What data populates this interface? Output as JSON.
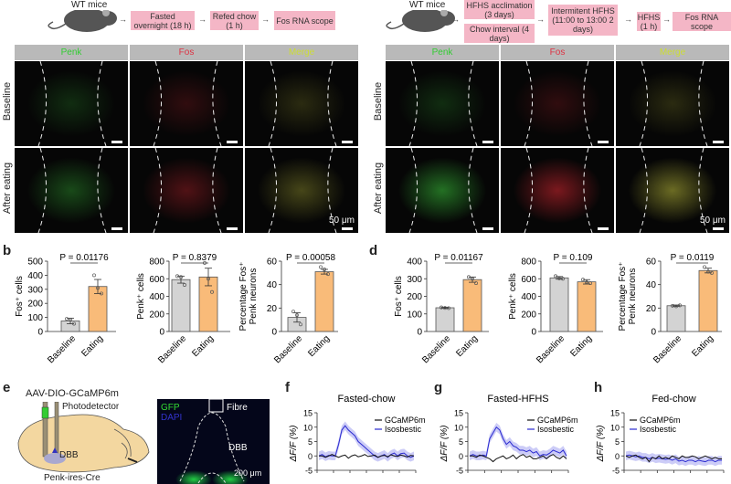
{
  "panel_a": {
    "mouse_label": "WT mice",
    "steps": [
      "Fasted overnight (18 h)",
      "Refed chow (1 h)",
      "Fos RNA scope"
    ],
    "columns": [
      "Penk",
      "Fos",
      "Merge"
    ],
    "rows": [
      "Baseline",
      "After eating"
    ],
    "scale_bar": "50 μm"
  },
  "panel_c": {
    "mouse_label": "WT mice",
    "steps_stacked": [
      "HFHS acclimation (3 days)",
      "Chow interval (4 days)"
    ],
    "steps": [
      "Intermitent HFHS (11:00 to 13:00 2 days)",
      "HFHS (1 h)",
      "Fos RNA scope"
    ],
    "columns": [
      "Penk",
      "Fos",
      "Merge"
    ],
    "rows": [
      "Baseline",
      "After eating"
    ],
    "scale_bar": "50 μm"
  },
  "labels": {
    "b": "b",
    "d": "d",
    "e": "e",
    "f": "f",
    "g": "g",
    "h": "h"
  },
  "panel_e": {
    "virus": "AAV-DIO-GCaMP6m",
    "photodetector": "Photodetector",
    "region": "DBB",
    "mouse_line": "Penk-ires-Cre",
    "image_labels": {
      "gfp": "GFP",
      "dapi": "DAPI",
      "fibre": "Fibre",
      "dbb": "DBB",
      "scale": "200 μm"
    }
  },
  "colors": {
    "baseline": "#d3d3d3",
    "eating": "#f9bb79",
    "gcamp": "#111111",
    "isosbestic": "#2a2ad0",
    "box": "#f4b6c6"
  },
  "chart_data": [
    {
      "id": "b1",
      "type": "bar",
      "categories": [
        "Baseline",
        "Eating"
      ],
      "values": [
        75,
        320
      ],
      "errors": [
        20,
        50
      ],
      "points": [
        [
          90,
          85,
          55
        ],
        [
          400,
          310,
          270
        ]
      ],
      "ylabel": [
        "Fos⁺ cells"
      ],
      "ylim": [
        0,
        500
      ],
      "ticks": [
        0,
        100,
        200,
        300,
        400,
        500
      ],
      "pvalue": "P = 0.01176"
    },
    {
      "id": "b2",
      "type": "bar",
      "categories": [
        "Baseline",
        "Eating"
      ],
      "values": [
        590,
        620
      ],
      "errors": [
        40,
        100
      ],
      "points": [
        [
          630,
          620,
          530
        ],
        [
          780,
          600,
          450
        ]
      ],
      "ylabel": [
        "Penk⁺ cells"
      ],
      "ylim": [
        0,
        800
      ],
      "ticks": [
        0,
        200,
        400,
        600,
        800
      ],
      "pvalue": "P = 0.8379"
    },
    {
      "id": "b3",
      "type": "bar",
      "categories": [
        "Baseline",
        "Eating"
      ],
      "values": [
        12,
        51
      ],
      "errors": [
        4,
        2
      ],
      "points": [
        [
          17,
          14,
          6
        ],
        [
          55,
          53,
          49
        ]
      ],
      "ylabel": [
        "Percentage Fos⁺",
        "Penk neurons"
      ],
      "ylim": [
        0,
        60
      ],
      "ticks": [
        0,
        20,
        40,
        60
      ],
      "pvalue": "P = 0.00058"
    },
    {
      "id": "d1",
      "type": "bar",
      "categories": [
        "Baseline",
        "Eating"
      ],
      "values": [
        135,
        295
      ],
      "errors": [
        3,
        15
      ],
      "points": [
        [
          137,
          134,
          133
        ],
        [
          310,
          300,
          275
        ]
      ],
      "ylabel": [
        "Fos⁺ cells"
      ],
      "ylim": [
        0,
        400
      ],
      "ticks": [
        0,
        100,
        200,
        300,
        400
      ],
      "pvalue": "P = 0.01167"
    },
    {
      "id": "d2",
      "type": "bar",
      "categories": [
        "Baseline",
        "Eating"
      ],
      "values": [
        610,
        565
      ],
      "errors": [
        15,
        25
      ],
      "points": [
        [
          630,
          605,
          600
        ],
        [
          590,
          560,
          550
        ]
      ],
      "ylabel": [
        "Penk⁺ cells"
      ],
      "ylim": [
        0,
        800
      ],
      "ticks": [
        0,
        200,
        400,
        600,
        800
      ],
      "pvalue": "P = 0.109"
    },
    {
      "id": "d3",
      "type": "bar",
      "categories": [
        "Baseline",
        "Eating"
      ],
      "values": [
        22,
        52
      ],
      "errors": [
        0.6,
        2
      ],
      "points": [
        [
          22,
          21.5,
          22.3
        ],
        [
          55,
          51,
          50
        ]
      ],
      "ylabel": [
        "Percentage Fos⁺",
        "Penk neurons"
      ],
      "ylim": [
        0,
        60
      ],
      "ticks": [
        0,
        20,
        40,
        60
      ],
      "pvalue": "P = 0.0119"
    },
    {
      "id": "f",
      "type": "line",
      "title": "Fasted-chow",
      "ylabel": "ΔF/F (%)",
      "ylim": [
        -5,
        15
      ],
      "ticks": [
        -5,
        0,
        5,
        10,
        15
      ],
      "series": [
        {
          "name": "GCaMP6m",
          "values": [
            0,
            0,
            -0.5,
            0,
            0.5,
            0,
            -0.5,
            0,
            0.3,
            -0.8,
            0,
            0.4,
            -0.3,
            0,
            0.5,
            -0.2,
            0,
            0.3,
            -0.5,
            0,
            0.2,
            -0.3,
            0.4,
            0,
            -0.2,
            0.3,
            0,
            -0.4,
            0.2,
            0
          ]
        },
        {
          "name": "Isosbestic",
          "values": [
            0,
            0.5,
            -0.3,
            0.2,
            0,
            0,
            4,
            9,
            10.5,
            9,
            8,
            7,
            5,
            4,
            3,
            2,
            1,
            0,
            -0.5,
            0,
            0.5,
            -0.5,
            0.5,
            1,
            0,
            0.8,
            1,
            0,
            -0.5,
            0
          ]
        }
      ]
    },
    {
      "id": "g",
      "type": "line",
      "title": "Fasted-HFHS",
      "ylabel": "ΔF/F (%)",
      "ylim": [
        -5,
        15
      ],
      "ticks": [
        -5,
        0,
        5,
        10,
        15
      ],
      "series": [
        {
          "name": "GCaMP6m",
          "values": [
            0,
            0,
            -0.5,
            0.3,
            0,
            -0.5,
            -1,
            -2,
            -1,
            -0.5,
            0,
            -1,
            -0.5,
            0.3,
            -1,
            0,
            0.5,
            -0.5,
            0,
            -1,
            -1,
            -0.5,
            0,
            -1,
            0,
            0.5,
            -0.5,
            -1,
            0,
            -1
          ]
        },
        {
          "name": "Isosbestic",
          "values": [
            0,
            0.5,
            0,
            0,
            0.3,
            0,
            6,
            8,
            10,
            9,
            6,
            4,
            5,
            3.5,
            3,
            2,
            2,
            1.5,
            2,
            1,
            1.5,
            0,
            0.5,
            0.3,
            1,
            2,
            1.5,
            1,
            2,
            0
          ]
        }
      ]
    },
    {
      "id": "h",
      "type": "line",
      "title": "Fed-chow",
      "ylabel": "ΔF/F (%)",
      "ylim": [
        -5,
        15
      ],
      "ticks": [
        -5,
        0,
        5,
        10,
        15
      ],
      "series": [
        {
          "name": "GCaMP6m",
          "values": [
            0,
            -0.5,
            0,
            0.3,
            -0.5,
            -1,
            -0.5,
            -2,
            -0.5,
            -1,
            0,
            -1,
            -0.5,
            -1,
            0,
            -0.5,
            -1,
            0,
            -0.5,
            -0.5,
            0,
            -0.3,
            -1,
            -0.5,
            0,
            -0.5,
            -1,
            -0.5,
            -1,
            -1
          ]
        },
        {
          "name": "Isosbestic",
          "values": [
            0,
            0.3,
            0,
            -0.3,
            0,
            -0.5,
            -0.5,
            -1,
            -0.5,
            -1,
            -0.8,
            -1,
            -1.2,
            -1,
            -1.5,
            -1,
            -1.8,
            -1.5,
            -2,
            -1.5,
            -1.5,
            -2,
            -1.5,
            -1.8,
            -2,
            -1.5,
            -1.5,
            -2,
            -1.5,
            -1.5
          ]
        }
      ]
    }
  ]
}
